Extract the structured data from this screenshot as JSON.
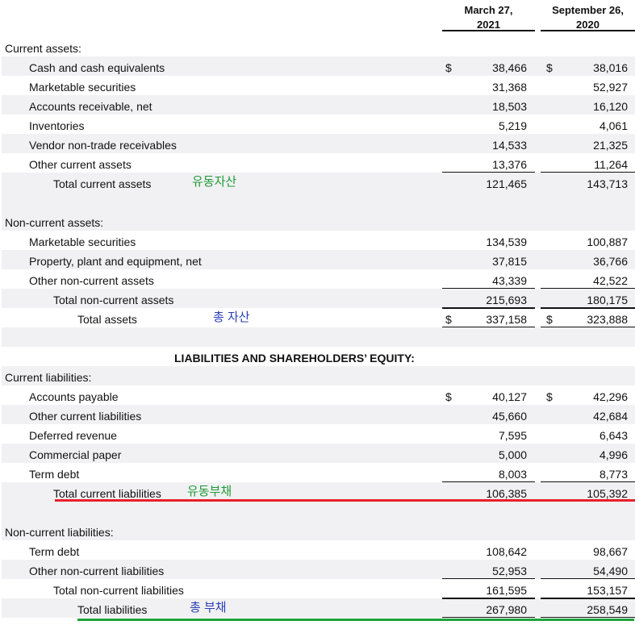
{
  "header": {
    "col1_line1": "March 27,",
    "col1_line2": "2021",
    "col2_line1": "September 26,",
    "col2_line2": "2020"
  },
  "rows": [
    {
      "label": "Current assets:"
    },
    {
      "label": "Cash and cash equivalents",
      "cur1": "$",
      "v1": "38,466",
      "cur2": "$",
      "v2": "38,016"
    },
    {
      "label": "Marketable securities",
      "v1": "31,368",
      "v2": "52,927"
    },
    {
      "label": "Accounts receivable, net",
      "v1": "18,503",
      "v2": "16,120"
    },
    {
      "label": "Inventories",
      "v1": "5,219",
      "v2": "4,061"
    },
    {
      "label": "Vendor non-trade receivables",
      "v1": "14,533",
      "v2": "21,325"
    },
    {
      "label": "Other current assets",
      "v1": "13,376",
      "v2": "11,264"
    },
    {
      "label": "Total current assets",
      "v1": "121,465",
      "v2": "143,713",
      "note": "유동자산"
    },
    {
      "label": ""
    },
    {
      "label": "Non-current assets:"
    },
    {
      "label": "Marketable securities",
      "v1": "134,539",
      "v2": "100,887"
    },
    {
      "label": "Property, plant and equipment, net",
      "v1": "37,815",
      "v2": "36,766"
    },
    {
      "label": "Other non-current assets",
      "v1": "43,339",
      "v2": "42,522"
    },
    {
      "label": "Total non-current assets",
      "v1": "215,693",
      "v2": "180,175"
    },
    {
      "label": "Total assets",
      "cur1": "$",
      "v1": "337,158",
      "cur2": "$",
      "v2": "323,888",
      "note": "총 자산"
    },
    {
      "label": ""
    },
    {
      "label": "LIABILITIES AND SHAREHOLDERS’ EQUITY:"
    },
    {
      "label": "Current liabilities:"
    },
    {
      "label": "Accounts payable",
      "cur1": "$",
      "v1": "40,127",
      "cur2": "$",
      "v2": "42,296"
    },
    {
      "label": "Other current liabilities",
      "v1": "45,660",
      "v2": "42,684"
    },
    {
      "label": "Deferred revenue",
      "v1": "7,595",
      "v2": "6,643"
    },
    {
      "label": "Commercial paper",
      "v1": "5,000",
      "v2": "4,996"
    },
    {
      "label": "Term debt",
      "v1": "8,003",
      "v2": "8,773"
    },
    {
      "label": "Total current liabilities",
      "v1": "106,385",
      "v2": "105,392",
      "note": "유동부채"
    },
    {
      "label": ""
    },
    {
      "label": "Non-current liabilities:"
    },
    {
      "label": "Term debt",
      "v1": "108,642",
      "v2": "98,667"
    },
    {
      "label": "Other non-current liabilities",
      "v1": "52,953",
      "v2": "54,490"
    },
    {
      "label": "Total non-current liabilities",
      "v1": "161,595",
      "v2": "153,157"
    },
    {
      "label": "Total liabilities",
      "v1": "267,980",
      "v2": "258,549",
      "note": "총 부채"
    }
  ],
  "colors": {
    "red_mark": "#e8202a",
    "green_mark": "#1fa23a",
    "green_note": "#1e9a35",
    "blue_note": "#2a3fb5",
    "shade": "#f1f1f3"
  }
}
